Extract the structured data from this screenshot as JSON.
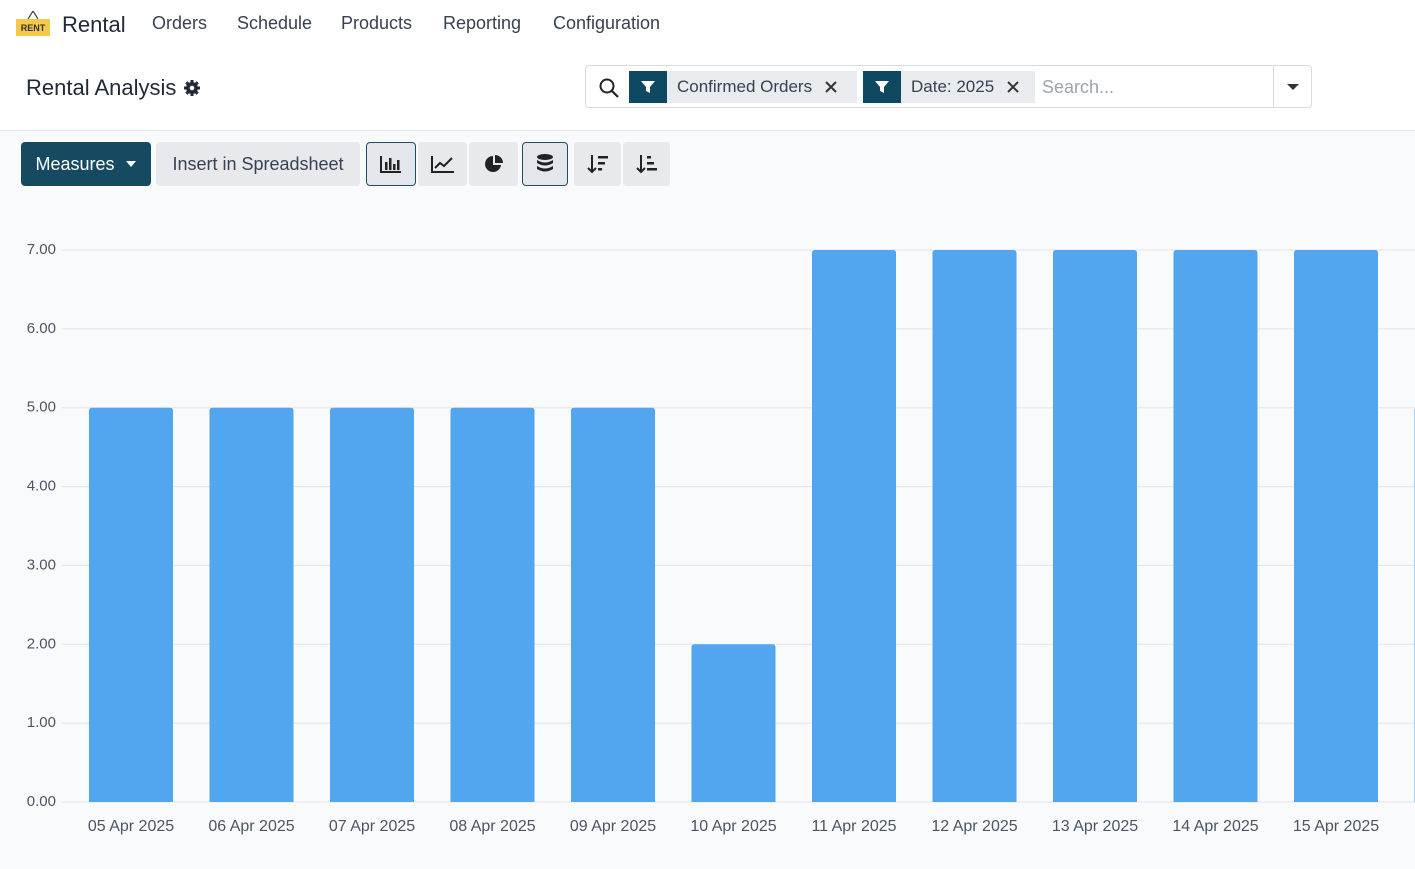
{
  "app": {
    "logo": "RENT",
    "name": "Rental",
    "menu": [
      "Orders",
      "Schedule",
      "Products",
      "Reporting",
      "Configuration"
    ]
  },
  "breadcrumb": "Rental Analysis",
  "search": {
    "facets": [
      "Confirmed Orders",
      "Date: 2025"
    ],
    "placeholder": "Search..."
  },
  "toolbar": {
    "measures": "Measures",
    "insert": "Insert in Spreadsheet"
  },
  "chart_data": {
    "type": "bar",
    "categories": [
      "05 Apr 2025",
      "06 Apr 2025",
      "07 Apr 2025",
      "08 Apr 2025",
      "09 Apr 2025",
      "10 Apr 2025",
      "11 Apr 2025",
      "12 Apr 2025",
      "13 Apr 2025",
      "14 Apr 2025",
      "15 Apr 2025",
      null
    ],
    "values": [
      5,
      5,
      5,
      5,
      5,
      2,
      7,
      7,
      7,
      7,
      7,
      5
    ],
    "color": "#51a6ef",
    "ylim": [
      0,
      7
    ],
    "yticks": [
      {
        "value": 0,
        "label": "0.00"
      },
      {
        "value": 1,
        "label": "1.00"
      },
      {
        "value": 2,
        "label": "2.00"
      },
      {
        "value": 3,
        "label": "3.00"
      },
      {
        "value": 4,
        "label": "4.00"
      },
      {
        "value": 5,
        "label": "5.00"
      },
      {
        "value": 6,
        "label": "6.00"
      },
      {
        "value": 7,
        "label": "7.00"
      }
    ],
    "grid": true
  }
}
